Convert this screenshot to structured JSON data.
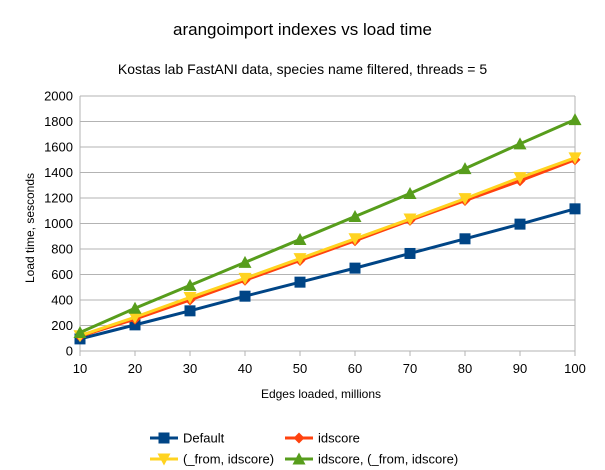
{
  "chart_data": {
    "type": "line",
    "title": "arangoimport indexes vs load time",
    "subtitle": "Kostas lab FastANI data, species name filtered, threads = 5",
    "xlabel": "Edges loaded, millions",
    "ylabel": "Load time, sesconds",
    "x": [
      10,
      20,
      30,
      40,
      50,
      60,
      70,
      80,
      90,
      100
    ],
    "xlim": [
      10,
      100
    ],
    "ylim": [
      0,
      2000
    ],
    "x_ticks": [
      10,
      20,
      30,
      40,
      50,
      60,
      70,
      80,
      90,
      100
    ],
    "y_ticks": [
      0,
      200,
      400,
      600,
      800,
      1000,
      1200,
      1400,
      1600,
      1800,
      2000
    ],
    "grid": "horizontal",
    "legend_position": "bottom",
    "series": [
      {
        "name": "Default",
        "color": "#004586",
        "marker": "square",
        "values": [
          95,
          205,
          315,
          430,
          540,
          650,
          765,
          880,
          995,
          1115
        ]
      },
      {
        "name": "idscore",
        "color": "#ff420e",
        "marker": "diamond",
        "values": [
          115,
          250,
          400,
          555,
          710,
          865,
          1025,
          1180,
          1335,
          1500
        ]
      },
      {
        "name": "(_from, idscore)",
        "color": "#ffd320",
        "marker": "triangle-down",
        "values": [
          120,
          265,
          420,
          570,
          725,
          880,
          1035,
          1195,
          1360,
          1515
        ]
      },
      {
        "name": "idscore, (_from, idscore)",
        "color": "#579d1c",
        "marker": "triangle-up",
        "values": [
          145,
          335,
          515,
          695,
          875,
          1055,
          1235,
          1430,
          1625,
          1815
        ]
      }
    ]
  }
}
